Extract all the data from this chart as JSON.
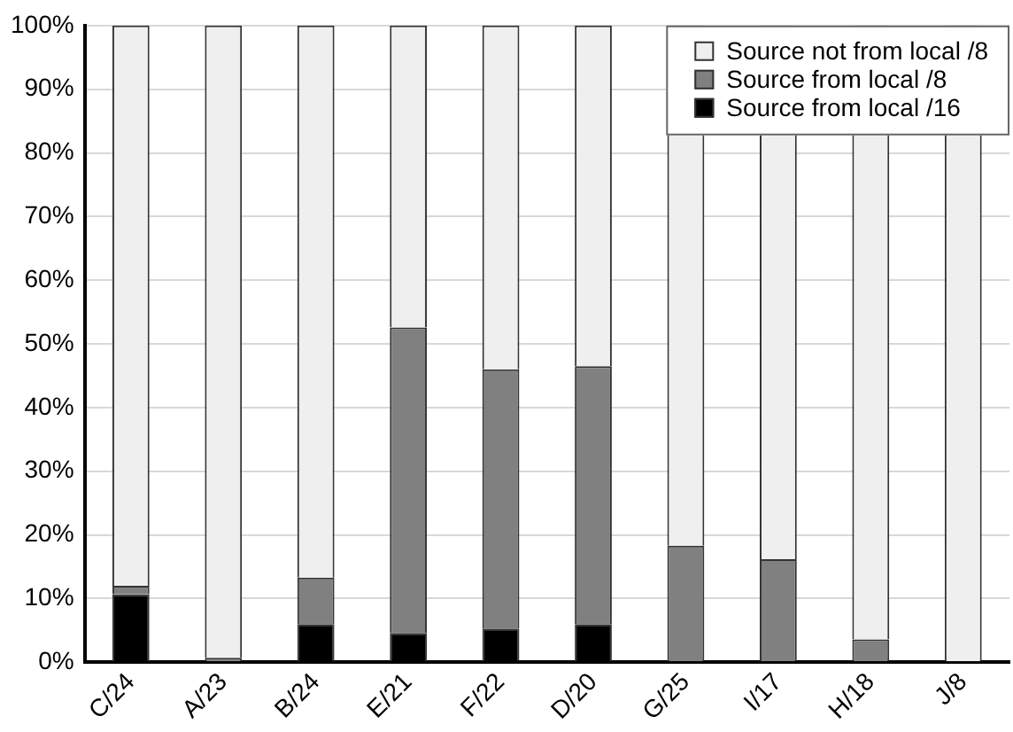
{
  "chart_data": {
    "type": "bar",
    "stacked": true,
    "categories": [
      "C/24",
      "A/23",
      "B/24",
      "E/21",
      "F/22",
      "D/20",
      "G/25",
      "I/17",
      "H/18",
      "J/8"
    ],
    "series": [
      {
        "name": "Source from local /16",
        "color": "#000000",
        "values": [
          10.7,
          0,
          6,
          4.6,
          5.3,
          6,
          0,
          0,
          0,
          0
        ]
      },
      {
        "name": "Source from local /8",
        "color": "#808080",
        "values": [
          1.3,
          0.7,
          7.3,
          48,
          40.7,
          40.5,
          18.3,
          16.2,
          3.6,
          0
        ]
      },
      {
        "name": "Source not from local /8",
        "color": "#efefef",
        "values": [
          88,
          99.3,
          86.7,
          47.4,
          54,
          53.5,
          81.7,
          83.8,
          96.4,
          100
        ]
      }
    ],
    "ylim": [
      0,
      100
    ],
    "yticks": [
      {
        "value": 0,
        "label": "0%"
      },
      {
        "value": 10,
        "label": "10%"
      },
      {
        "value": 20,
        "label": "20%"
      },
      {
        "value": 30,
        "label": "30%"
      },
      {
        "value": 40,
        "label": "40%"
      },
      {
        "value": 50,
        "label": "50%"
      },
      {
        "value": 60,
        "label": "60%"
      },
      {
        "value": 70,
        "label": "70%"
      },
      {
        "value": 80,
        "label": "80%"
      },
      {
        "value": 90,
        "label": "90%"
      },
      {
        "value": 100,
        "label": "100%"
      }
    ],
    "grid": "y",
    "legend": "top right"
  }
}
